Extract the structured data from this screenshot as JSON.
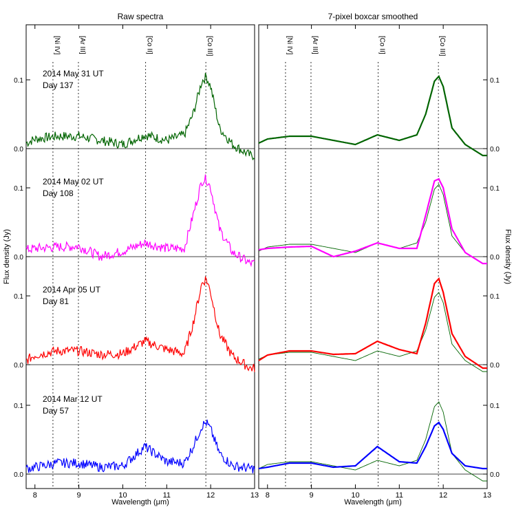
{
  "chart_data": {
    "type": "line",
    "ylabel": "Flux density (Jy)",
    "xlabel": "Wavelength (μm)",
    "xlim": [
      7.8,
      13.0
    ],
    "x_ticks": [
      8,
      9,
      10,
      11,
      12,
      13
    ],
    "y_tick_labels": [
      "0.0",
      "0.1"
    ],
    "colors": {
      "day137": "#006400",
      "day108": "#ff00ff",
      "day81": "#ff0000",
      "day57": "#0000ff",
      "reference": "#006400"
    },
    "line_markers": [
      {
        "label": "[Ni IV]",
        "x": 8.41
      },
      {
        "label": "[Ar III]",
        "x": 8.99
      },
      {
        "label": "[Co II]",
        "x": 10.52
      },
      {
        "label": "[Co III]",
        "x": 11.89
      }
    ],
    "panels": [
      {
        "title": "Raw spectra",
        "smoothed": false
      },
      {
        "title": "7-pixel boxcar smoothed",
        "smoothed": true
      }
    ],
    "epochs": [
      {
        "date": "2014 May 31 UT",
        "day": "Day 137",
        "color_key": "day137",
        "x": [
          7.8,
          8.0,
          8.5,
          9.0,
          9.5,
          10.0,
          10.5,
          11.0,
          11.4,
          11.6,
          11.8,
          11.9,
          12.0,
          12.2,
          12.5,
          12.9
        ],
        "y": [
          0.008,
          0.014,
          0.018,
          0.018,
          0.012,
          0.006,
          0.02,
          0.012,
          0.02,
          0.05,
          0.098,
          0.105,
          0.09,
          0.03,
          0.006,
          -0.01
        ]
      },
      {
        "date": "2014 May 02 UT",
        "day": "Day 108",
        "color_key": "day108",
        "x": [
          7.8,
          8.0,
          8.5,
          9.0,
          9.5,
          10.0,
          10.5,
          11.0,
          11.4,
          11.6,
          11.8,
          11.9,
          12.0,
          12.2,
          12.5,
          12.9
        ],
        "y": [
          0.01,
          0.012,
          0.014,
          0.015,
          0.0,
          0.008,
          0.02,
          0.012,
          0.012,
          0.06,
          0.11,
          0.113,
          0.1,
          0.04,
          0.006,
          -0.01
        ]
      },
      {
        "date": "2014 Apr 05 UT",
        "day": "Day 81",
        "color_key": "day81",
        "x": [
          7.8,
          8.0,
          8.5,
          9.0,
          9.5,
          10.0,
          10.5,
          11.0,
          11.4,
          11.6,
          11.8,
          11.9,
          12.0,
          12.2,
          12.5,
          12.9
        ],
        "y": [
          0.006,
          0.014,
          0.02,
          0.02,
          0.015,
          0.016,
          0.034,
          0.022,
          0.016,
          0.06,
          0.118,
          0.125,
          0.105,
          0.045,
          0.012,
          -0.005
        ]
      },
      {
        "date": "2014 Mar 12 UT",
        "day": "Day 57",
        "color_key": "day57",
        "x": [
          7.8,
          8.0,
          8.5,
          9.0,
          9.5,
          10.0,
          10.5,
          11.0,
          11.4,
          11.6,
          11.8,
          11.9,
          12.0,
          12.2,
          12.5,
          12.9
        ],
        "y": [
          0.008,
          0.01,
          0.016,
          0.016,
          0.01,
          0.012,
          0.04,
          0.018,
          0.016,
          0.04,
          0.07,
          0.075,
          0.065,
          0.03,
          0.012,
          0.008
        ]
      }
    ]
  }
}
